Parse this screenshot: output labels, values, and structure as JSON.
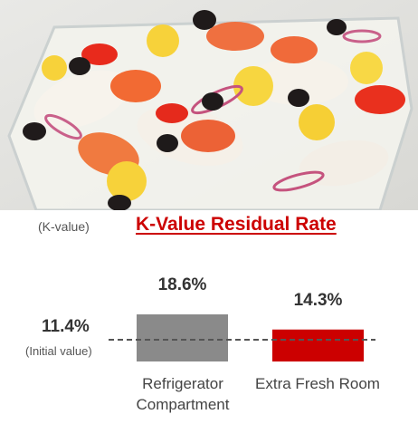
{
  "chart_data": {
    "type": "bar",
    "title": "K-Value Residual Rate",
    "ylabel": "(K-value)",
    "categories": [
      "Refrigerator Compartment",
      "Extra Fresh Room"
    ],
    "category_lines": [
      [
        "Refrigerator",
        "Compartment"
      ],
      [
        "Extra Fresh Room"
      ]
    ],
    "values": [
      18.6,
      14.3
    ],
    "value_labels": [
      "18.6%",
      "14.3%"
    ],
    "reference": {
      "value": 11.4,
      "label": "11.4%",
      "sublabel": "(Initial value)",
      "style": "dashed"
    },
    "ylim": [
      0,
      20
    ],
    "colors": [
      "#8a8a8a",
      "#cc0000"
    ],
    "grid": false
  },
  "colors": {
    "title": "#cc0000",
    "reference_line": "#555555"
  }
}
